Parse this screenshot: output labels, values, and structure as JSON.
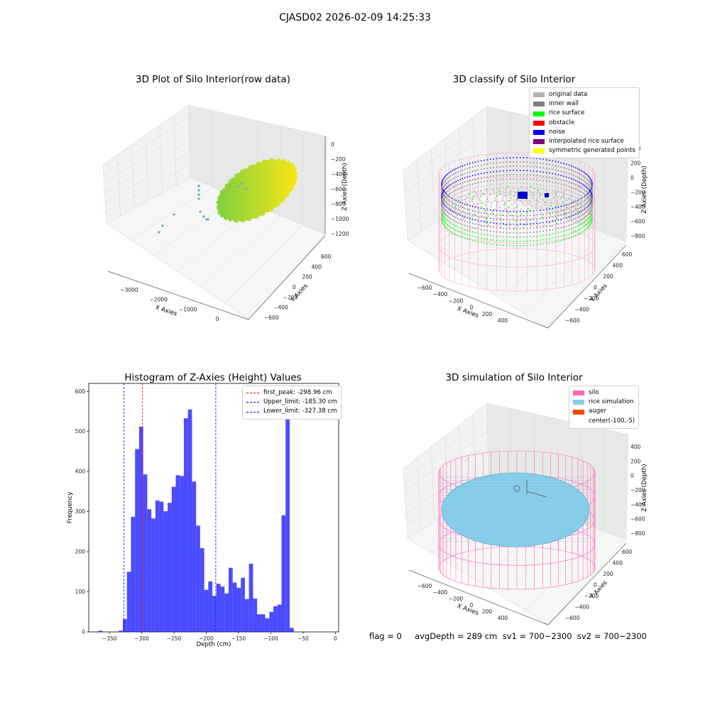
{
  "suptitle": "CJASD02 2026-02-09 14:25:33",
  "footer": "flag = 0     avgDepth = 289 cm  sv1 = 700~2300  sv2 = 700~2300",
  "panels": {
    "raw": {
      "title": "3D Plot of Silo Interior(row data)",
      "xlabel": "X Axies",
      "ylabel": "Y Axies",
      "zlabel": "Z Axies (Depth)",
      "x_ticks": [
        "−3000",
        "−2000",
        "−1000",
        "0"
      ],
      "y_ticks": [
        "600",
        "400",
        "200",
        "0",
        "−200",
        "−400",
        "−600"
      ],
      "z_ticks": [
        "0",
        "−200",
        "−400",
        "−600",
        "−800",
        "−1000",
        "−1200"
      ]
    },
    "classify": {
      "title": "3D classify of Silo Interior",
      "xlabel": "X Axies",
      "ylabel": "Y Axies",
      "zlabel": "Z Axies (Depth)",
      "x_ticks": [
        "−600",
        "−400",
        "−200",
        "0",
        "200",
        "400"
      ],
      "y_ticks": [
        "600",
        "400",
        "200",
        "0",
        "−200",
        "−400",
        "−600"
      ],
      "z_ticks": [
        "400",
        "200",
        "0",
        "−200",
        "−400",
        "−600",
        "−800"
      ],
      "legend": [
        {
          "label": "original data",
          "color": "#b4b4b4"
        },
        {
          "label": "inner wall",
          "color": "#808080"
        },
        {
          "label": "rice surface",
          "color": "#00ff00"
        },
        {
          "label": "obstacle",
          "color": "#ff0000"
        },
        {
          "label": "noise",
          "color": "#0000ff"
        },
        {
          "label": "interpolated rice surface",
          "color": "#800080"
        },
        {
          "label": "symmetric generated points",
          "color": "#ffff00"
        }
      ]
    },
    "simulation": {
      "title": "3D simulation of Silo Interior",
      "xlabel": "X Axies",
      "ylabel": "Y Axies",
      "zlabel": "Z Axies (Depth)",
      "x_ticks": [
        "−600",
        "−400",
        "−200",
        "0",
        "200",
        "400"
      ],
      "y_ticks": [
        "600",
        "400",
        "200",
        "0",
        "−200",
        "−400",
        "−600"
      ],
      "z_ticks": [
        "400",
        "200",
        "0",
        "−200",
        "−400",
        "−600",
        "−800"
      ],
      "legend": [
        {
          "label": "silo",
          "color": "#ff69b4"
        },
        {
          "label": "rice simulation",
          "color": "#87ceeb"
        },
        {
          "label": "auger",
          "color": "#ff4500"
        },
        {
          "label": "center(-100,-5)",
          "color": ""
        }
      ]
    }
  },
  "chart_data": {
    "type": "bar",
    "title": "Histogram of Z-Axies (Height) Values",
    "xlabel": "Depth (cm)",
    "ylabel": "Frequency",
    "xlim": [
      -382,
      5
    ],
    "ylim": [
      0,
      620
    ],
    "x_ticks": [
      -350,
      -300,
      -250,
      -200,
      -150,
      -100,
      -50,
      0
    ],
    "y_ticks": [
      0,
      100,
      200,
      300,
      400,
      500,
      600
    ],
    "bin_width": 6.3,
    "color": "#0000ff",
    "bins": [
      {
        "x0": -367.0,
        "count": 3
      },
      {
        "x0": -360.7,
        "count": 0
      },
      {
        "x0": -354.4,
        "count": 0
      },
      {
        "x0": -348.1,
        "count": 0
      },
      {
        "x0": -341.8,
        "count": 0
      },
      {
        "x0": -335.5,
        "count": 3
      },
      {
        "x0": -329.2,
        "count": 32
      },
      {
        "x0": -322.9,
        "count": 150
      },
      {
        "x0": -316.6,
        "count": 287
      },
      {
        "x0": -310.3,
        "count": 456
      },
      {
        "x0": -304.0,
        "count": 512
      },
      {
        "x0": -297.7,
        "count": 393
      },
      {
        "x0": -291.4,
        "count": 306
      },
      {
        "x0": -285.1,
        "count": 283
      },
      {
        "x0": -278.8,
        "count": 328
      },
      {
        "x0": -272.5,
        "count": 325
      },
      {
        "x0": -266.2,
        "count": 301
      },
      {
        "x0": -259.9,
        "count": 322
      },
      {
        "x0": -253.6,
        "count": 362
      },
      {
        "x0": -247.3,
        "count": 391
      },
      {
        "x0": -241.0,
        "count": 389
      },
      {
        "x0": -234.7,
        "count": 533
      },
      {
        "x0": -228.4,
        "count": 555
      },
      {
        "x0": -222.1,
        "count": 375
      },
      {
        "x0": -215.8,
        "count": 265
      },
      {
        "x0": -209.5,
        "count": 209
      },
      {
        "x0": -203.2,
        "count": 105
      },
      {
        "x0": -196.9,
        "count": 126
      },
      {
        "x0": -190.6,
        "count": 90
      },
      {
        "x0": -184.3,
        "count": 120
      },
      {
        "x0": -178.0,
        "count": 113
      },
      {
        "x0": -171.7,
        "count": 96
      },
      {
        "x0": -165.4,
        "count": 160
      },
      {
        "x0": -159.1,
        "count": 123
      },
      {
        "x0": -152.8,
        "count": 110
      },
      {
        "x0": -146.5,
        "count": 135
      },
      {
        "x0": -140.2,
        "count": 82
      },
      {
        "x0": -133.9,
        "count": 170
      },
      {
        "x0": -127.6,
        "count": 83
      },
      {
        "x0": -121.3,
        "count": 44
      },
      {
        "x0": -115.0,
        "count": 44
      },
      {
        "x0": -108.7,
        "count": 34
      },
      {
        "x0": -102.4,
        "count": 50
      },
      {
        "x0": -96.1,
        "count": 64
      },
      {
        "x0": -89.8,
        "count": 68
      },
      {
        "x0": -83.5,
        "count": 291
      },
      {
        "x0": -77.2,
        "count": 585
      },
      {
        "x0": -70.9,
        "count": 10
      }
    ],
    "vlines": [
      {
        "label": "first_peak: -298.96 cm",
        "x": -298.96,
        "color": "#ff0000"
      },
      {
        "label": "Upper_limit: -185.30 cm",
        "x": -185.3,
        "color": "#0000ff"
      },
      {
        "label": "Lower_limit: -327.38 cm",
        "x": -327.38,
        "color": "#0000ff"
      }
    ]
  }
}
